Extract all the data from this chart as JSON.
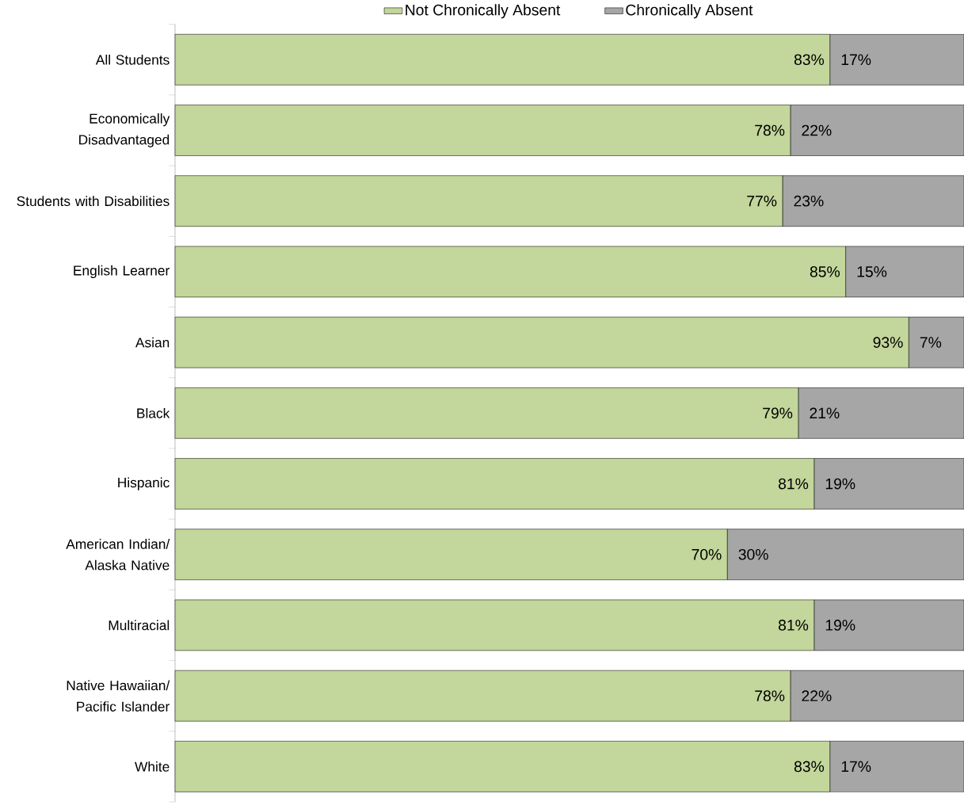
{
  "chart_data": {
    "type": "bar",
    "orientation": "horizontal",
    "stacked": true,
    "legend": "top",
    "categories": [
      "All Students",
      "Economically Disadvantaged",
      "Students with Disabilities",
      "English Learner",
      "Asian",
      "Black",
      "Hispanic",
      "American Indian/ Alaska Native",
      "Multiracial",
      "Native Hawaiian/ Pacific Islander",
      "White"
    ],
    "series": [
      {
        "name": "Not Chronically Absent",
        "color": "#c3d69b",
        "values": [
          83,
          78,
          77,
          85,
          93,
          79,
          81,
          70,
          81,
          78,
          83
        ],
        "value_labels": [
          "83%",
          "78%",
          "77%",
          "85%",
          "93%",
          "79%",
          "81%",
          "70%",
          "81%",
          "78%",
          "83%"
        ]
      },
      {
        "name": "Chronically Absent",
        "color": "#a6a6a6",
        "values": [
          17,
          22,
          23,
          15,
          7,
          21,
          19,
          30,
          19,
          22,
          17
        ],
        "value_labels": [
          "17%",
          "22%",
          "23%",
          "15%",
          "7%",
          "21%",
          "19%",
          "30%",
          "19%",
          "22%",
          "17%"
        ]
      }
    ]
  }
}
